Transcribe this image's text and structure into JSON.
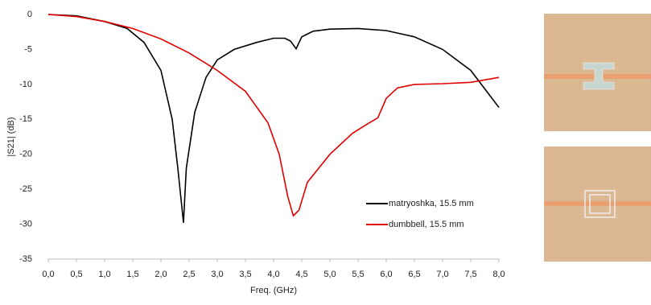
{
  "chart_data": {
    "type": "line",
    "xlabel": "Freq. (GHz)",
    "ylabel": "|S21| (dB)",
    "xlim": [
      0,
      8
    ],
    "ylim": [
      -35,
      0
    ],
    "xticks": [
      {
        "value": 0,
        "label": "0,0"
      },
      {
        "value": 0.5,
        "label": "0,5"
      },
      {
        "value": 1,
        "label": "1,0"
      },
      {
        "value": 1.5,
        "label": "1,5"
      },
      {
        "value": 2,
        "label": "2,0"
      },
      {
        "value": 2.5,
        "label": "2,5"
      },
      {
        "value": 3,
        "label": "3,0"
      },
      {
        "value": 3.5,
        "label": "3,5"
      },
      {
        "value": 4,
        "label": "4,0"
      },
      {
        "value": 4.5,
        "label": "4,5"
      },
      {
        "value": 5,
        "label": "5,0"
      },
      {
        "value": 5.5,
        "label": "5,5"
      },
      {
        "value": 6,
        "label": "6,0"
      },
      {
        "value": 6.5,
        "label": "6,5"
      },
      {
        "value": 7,
        "label": "7,0"
      },
      {
        "value": 7.5,
        "label": "7,5"
      },
      {
        "value": 8,
        "label": "8,0"
      }
    ],
    "yticks": [
      0,
      -5,
      -10,
      -15,
      -20,
      -25,
      -30,
      -35
    ],
    "grid": false,
    "legend": "lower right",
    "series": [
      {
        "name": "matryoshka, 15.5 mm",
        "color": "#000000",
        "x": [
          0,
          0.5,
          1.0,
          1.4,
          1.7,
          2.0,
          2.2,
          2.3,
          2.4,
          2.45,
          2.6,
          2.8,
          3.0,
          3.3,
          3.7,
          4.0,
          4.2,
          4.3,
          4.4,
          4.5,
          4.7,
          5.0,
          5.5,
          6.0,
          6.5,
          7.0,
          7.5,
          8.0
        ],
        "values": [
          0,
          -0.2,
          -1,
          -2,
          -4,
          -8,
          -15,
          -22,
          -29.8,
          -22,
          -14,
          -9,
          -6.5,
          -5,
          -4,
          -3.4,
          -3.4,
          -3.8,
          -4.9,
          -3.2,
          -2.4,
          -2.1,
          -2.0,
          -2.3,
          -3.2,
          -5,
          -8,
          -13.3
        ]
      },
      {
        "name": "dumbbell, 15.5 mm",
        "color": "#e00000",
        "x": [
          0,
          0.5,
          1.0,
          1.5,
          2.0,
          2.5,
          3.0,
          3.5,
          3.9,
          4.1,
          4.25,
          4.35,
          4.45,
          4.6,
          5.0,
          5.4,
          5.7,
          5.85,
          6.0,
          6.2,
          6.5,
          7.0,
          7.5,
          8.0
        ],
        "values": [
          0,
          -0.3,
          -1,
          -2,
          -3.5,
          -5.5,
          -8,
          -11,
          -15.5,
          -20,
          -26,
          -28.8,
          -28,
          -24,
          -20,
          -17,
          -15.5,
          -14.8,
          -12,
          -10.5,
          -10,
          -9.9,
          -9.7,
          -9
        ]
      }
    ]
  }
}
